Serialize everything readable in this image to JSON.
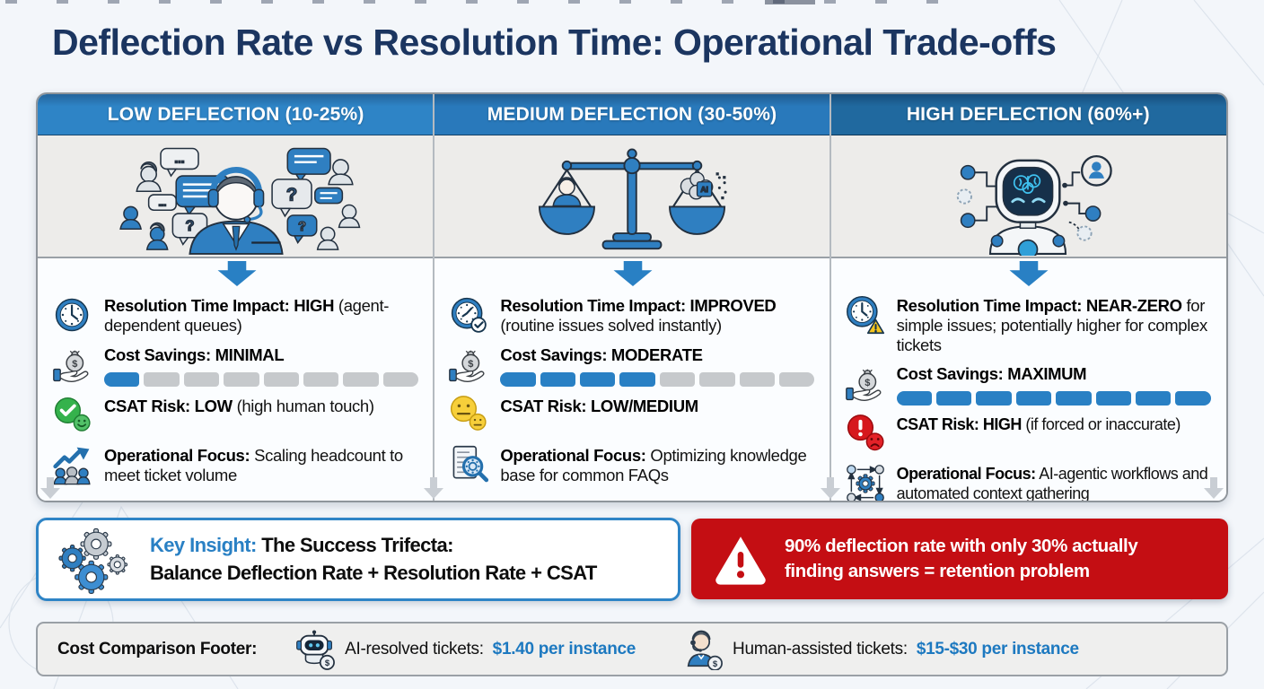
{
  "title": "Deflection Rate vs Resolution Time: Operational Trade-offs",
  "colors": {
    "accent_blue": "#2980c4",
    "low_header": "#2e84c6",
    "medium_header": "#2979bb",
    "high_header": "#20699f",
    "warning_red": "#c40e13",
    "bar_filled": "#2980c4",
    "bar_empty": "#c6c9cc",
    "value_blue": "#1d79c0",
    "title_navy": "#1b3560"
  },
  "columns": [
    {
      "header": "LOW DEFLECTION (10-25%)",
      "illustration": "call-center-agent-surrounded-by-customers-with-question-bubbles",
      "items": [
        {
          "icon": "clock-icon",
          "bold": "Resolution Time Impact: HIGH",
          "rest": "(agent-dependent queues)"
        },
        {
          "icon": "money-bag-hand-icon",
          "bold": "Cost Savings: MINIMAL",
          "bar": {
            "filled": 1,
            "total": 8
          }
        },
        {
          "icon": "green-check-smiley-icon",
          "bold": "CSAT Risk: LOW",
          "rest": "(high human touch)"
        },
        {
          "icon": "growth-arrow-people-icon",
          "bold": "Operational Focus:",
          "rest": "Scaling headcount to meet ticket volume"
        }
      ]
    },
    {
      "header": "MEDIUM DEFLECTION (30-50%)",
      "illustration": "balance-scale-weighing-human-vs-ai",
      "items": [
        {
          "icon": "clock-check-icon",
          "bold": "Resolution Time Impact: IMPROVED",
          "rest": "(routine issues solved instantly)"
        },
        {
          "icon": "money-bag-hand-icon",
          "bold": "Cost Savings: MODERATE",
          "bar": {
            "filled": 4,
            "total": 8
          }
        },
        {
          "icon": "yellow-neutral-face-icon",
          "bold": "CSAT Risk: LOW/MEDIUM",
          "rest": ""
        },
        {
          "icon": "knowledge-base-search-icon",
          "bold": "Operational Focus:",
          "rest": "Optimizing knowledge base for common FAQs"
        }
      ]
    },
    {
      "header": "HIGH DEFLECTION (60%+)",
      "illustration": "ai-robot-with-brain-and-network-nodes",
      "items": [
        {
          "icon": "clock-warning-icon",
          "bold": "Resolution Time Impact: NEAR-ZERO",
          "rest": "for simple issues; potentially higher for complex tickets"
        },
        {
          "icon": "money-bag-hand-icon",
          "bold": "Cost Savings: MAXIMUM",
          "bar": {
            "filled": 8,
            "total": 8
          }
        },
        {
          "icon": "red-alert-sad-face-icon",
          "bold": "CSAT Risk: HIGH",
          "rest": "(if forced or inaccurate)"
        },
        {
          "icon": "ai-workflow-gear-icon",
          "bold": "Operational Focus:",
          "rest": "AI-agentic workflows and automated context gathering"
        }
      ]
    }
  ],
  "key_insight": {
    "label": "Key Insight:",
    "heading": "The Success Trifecta:",
    "line2": "Balance Deflection Rate + Resolution Rate + CSAT"
  },
  "warning": {
    "line1": "90% deflection rate with only 30% actually",
    "line2": "finding answers = retention problem"
  },
  "footer": {
    "label": "Cost Comparison Footer:",
    "ai_prefix": "AI-resolved tickets:",
    "ai_value": "$1.40 per instance",
    "human_prefix": "Human-assisted tickets:",
    "human_value": "$15-$30 per instance"
  }
}
